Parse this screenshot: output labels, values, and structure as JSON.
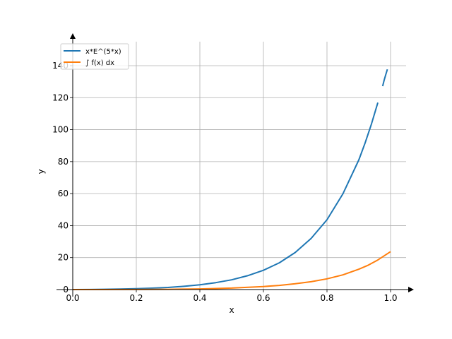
{
  "chart_data": {
    "type": "line",
    "xlabel": "x",
    "ylabel": "y",
    "xlim": [
      0.0,
      1.0
    ],
    "ylim": [
      0,
      155
    ],
    "xticks": [
      "0.0",
      "0.2",
      "0.4",
      "0.6",
      "0.8",
      "1.0"
    ],
    "yticks": [
      "0",
      "20",
      "40",
      "60",
      "80",
      "100",
      "120",
      "140"
    ],
    "grid": true,
    "legend_position": "top-left",
    "series": [
      {
        "name": "x*E^(5*x)",
        "color": "#1f77b4",
        "segments": [
          {
            "x": [
              0.0,
              0.05,
              0.1,
              0.15,
              0.2,
              0.25,
              0.3,
              0.35,
              0.4,
              0.45,
              0.5,
              0.55,
              0.6,
              0.65,
              0.7,
              0.75,
              0.8,
              0.85,
              0.9,
              0.92,
              0.94,
              0.96
            ],
            "y": [
              0.0,
              0.06,
              0.16,
              0.32,
              0.54,
              0.87,
              1.34,
              2.01,
              2.96,
              4.31,
              6.09,
              8.64,
              12.05,
              16.75,
              23.18,
              31.95,
              43.68,
              59.82,
              81.0,
              91.7,
              103.6,
              116.9
            ]
          },
          {
            "x": [
              0.975,
              0.98,
              0.985,
              0.99
            ],
            "y": [
              127.2,
              131.0,
              134.5,
              137.7
            ]
          }
        ]
      },
      {
        "name": "∫ f(x) dx",
        "color": "#ff7f0e",
        "segments": [
          {
            "x": [
              0.0,
              0.1,
              0.2,
              0.3,
              0.4,
              0.5,
              0.6,
              0.65,
              0.7,
              0.75,
              0.8,
              0.85,
              0.9,
              0.93,
              0.96,
              1.0
            ],
            "y": [
              0.0,
              0.01,
              0.05,
              0.16,
              0.4,
              0.91,
              1.9,
              2.6,
              3.6,
              4.9,
              6.7,
              9.2,
              12.7,
              15.3,
              18.5,
              23.7
            ]
          }
        ]
      }
    ]
  }
}
